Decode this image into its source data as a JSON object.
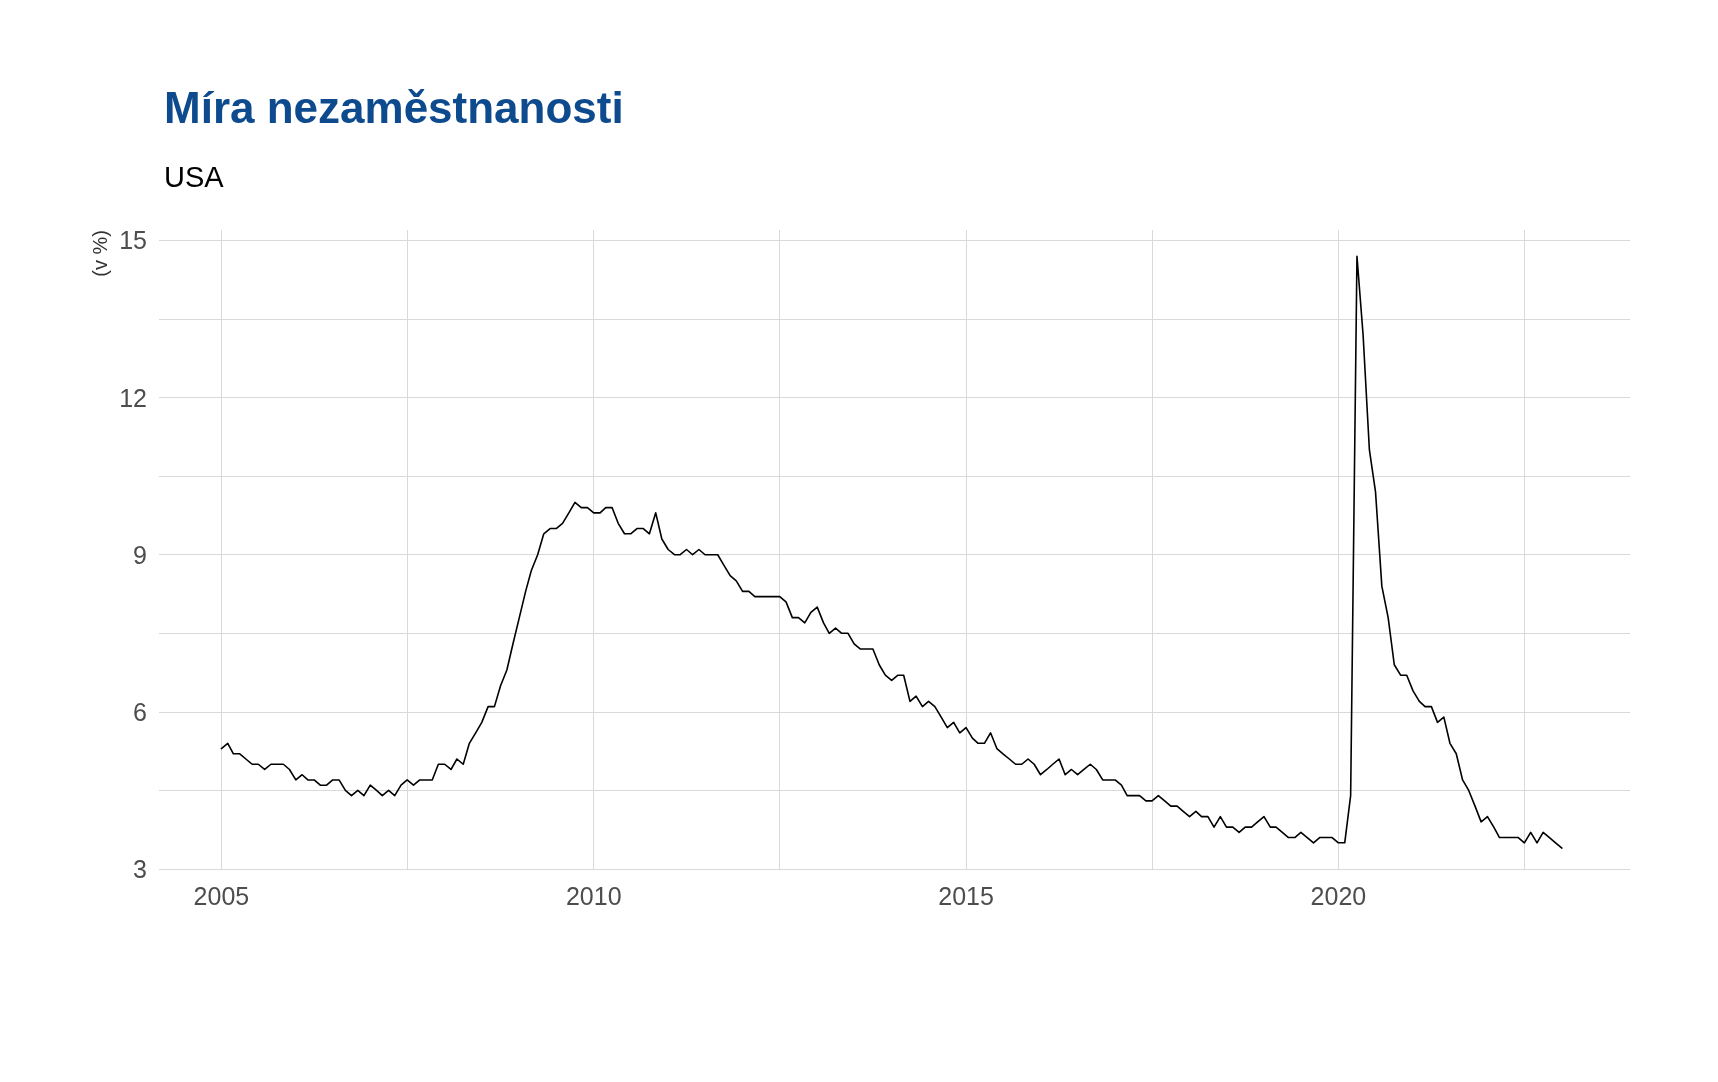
{
  "chart_data": {
    "type": "line",
    "title": "Míra nezaměstnanosti",
    "subtitle": "USA",
    "ylabel": "(v %)",
    "x": [
      "2005-01",
      "2005-02",
      "2005-03",
      "2005-04",
      "2005-05",
      "2005-06",
      "2005-07",
      "2005-08",
      "2005-09",
      "2005-10",
      "2005-11",
      "2005-12",
      "2006-01",
      "2006-02",
      "2006-03",
      "2006-04",
      "2006-05",
      "2006-06",
      "2006-07",
      "2006-08",
      "2006-09",
      "2006-10",
      "2006-11",
      "2006-12",
      "2007-01",
      "2007-02",
      "2007-03",
      "2007-04",
      "2007-05",
      "2007-06",
      "2007-07",
      "2007-08",
      "2007-09",
      "2007-10",
      "2007-11",
      "2007-12",
      "2008-01",
      "2008-02",
      "2008-03",
      "2008-04",
      "2008-05",
      "2008-06",
      "2008-07",
      "2008-08",
      "2008-09",
      "2008-10",
      "2008-11",
      "2008-12",
      "2009-01",
      "2009-02",
      "2009-03",
      "2009-04",
      "2009-05",
      "2009-06",
      "2009-07",
      "2009-08",
      "2009-09",
      "2009-10",
      "2009-11",
      "2009-12",
      "2010-01",
      "2010-02",
      "2010-03",
      "2010-04",
      "2010-05",
      "2010-06",
      "2010-07",
      "2010-08",
      "2010-09",
      "2010-10",
      "2010-11",
      "2010-12",
      "2011-01",
      "2011-02",
      "2011-03",
      "2011-04",
      "2011-05",
      "2011-06",
      "2011-07",
      "2011-08",
      "2011-09",
      "2011-10",
      "2011-11",
      "2011-12",
      "2012-01",
      "2012-02",
      "2012-03",
      "2012-04",
      "2012-05",
      "2012-06",
      "2012-07",
      "2012-08",
      "2012-09",
      "2012-10",
      "2012-11",
      "2012-12",
      "2013-01",
      "2013-02",
      "2013-03",
      "2013-04",
      "2013-05",
      "2013-06",
      "2013-07",
      "2013-08",
      "2013-09",
      "2013-10",
      "2013-11",
      "2013-12",
      "2014-01",
      "2014-02",
      "2014-03",
      "2014-04",
      "2014-05",
      "2014-06",
      "2014-07",
      "2014-08",
      "2014-09",
      "2014-10",
      "2014-11",
      "2014-12",
      "2015-01",
      "2015-02",
      "2015-03",
      "2015-04",
      "2015-05",
      "2015-06",
      "2015-07",
      "2015-08",
      "2015-09",
      "2015-10",
      "2015-11",
      "2015-12",
      "2016-01",
      "2016-02",
      "2016-03",
      "2016-04",
      "2016-05",
      "2016-06",
      "2016-07",
      "2016-08",
      "2016-09",
      "2016-10",
      "2016-11",
      "2016-12",
      "2017-01",
      "2017-02",
      "2017-03",
      "2017-04",
      "2017-05",
      "2017-06",
      "2017-07",
      "2017-08",
      "2017-09",
      "2017-10",
      "2017-11",
      "2017-12",
      "2018-01",
      "2018-02",
      "2018-03",
      "2018-04",
      "2018-05",
      "2018-06",
      "2018-07",
      "2018-08",
      "2018-09",
      "2018-10",
      "2018-11",
      "2018-12",
      "2019-01",
      "2019-02",
      "2019-03",
      "2019-04",
      "2019-05",
      "2019-06",
      "2019-07",
      "2019-08",
      "2019-09",
      "2019-10",
      "2019-11",
      "2019-12",
      "2020-01",
      "2020-02",
      "2020-03",
      "2020-04",
      "2020-05",
      "2020-06",
      "2020-07",
      "2020-08",
      "2020-09",
      "2020-10",
      "2020-11",
      "2020-12",
      "2021-01",
      "2021-02",
      "2021-03",
      "2021-04",
      "2021-05",
      "2021-06",
      "2021-07",
      "2021-08",
      "2021-09",
      "2021-10",
      "2021-11",
      "2021-12",
      "2022-01",
      "2022-02",
      "2022-03",
      "2022-04",
      "2022-05",
      "2022-06",
      "2022-07",
      "2022-08",
      "2022-09",
      "2022-10",
      "2022-11",
      "2022-12",
      "2023-01"
    ],
    "series": [
      {
        "color": "#000000",
        "values": [
          5.3,
          5.4,
          5.2,
          5.2,
          5.1,
          5.0,
          5.0,
          4.9,
          5.0,
          5.0,
          5.0,
          4.9,
          4.7,
          4.8,
          4.7,
          4.7,
          4.6,
          4.6,
          4.7,
          4.7,
          4.5,
          4.4,
          4.5,
          4.4,
          4.6,
          4.5,
          4.4,
          4.5,
          4.4,
          4.6,
          4.7,
          4.6,
          4.7,
          4.7,
          4.7,
          5.0,
          5.0,
          4.9,
          5.1,
          5.0,
          5.4,
          5.6,
          5.8,
          6.1,
          6.1,
          6.5,
          6.8,
          7.3,
          7.8,
          8.3,
          8.7,
          9.0,
          9.4,
          9.5,
          9.5,
          9.6,
          9.8,
          10.0,
          9.9,
          9.9,
          9.8,
          9.8,
          9.9,
          9.9,
          9.6,
          9.4,
          9.4,
          9.5,
          9.5,
          9.4,
          9.8,
          9.3,
          9.1,
          9.0,
          9.0,
          9.1,
          9.0,
          9.1,
          9.0,
          9.0,
          9.0,
          8.8,
          8.6,
          8.5,
          8.3,
          8.3,
          8.2,
          8.2,
          8.2,
          8.2,
          8.2,
          8.1,
          7.8,
          7.8,
          7.7,
          7.9,
          8.0,
          7.7,
          7.5,
          7.6,
          7.5,
          7.5,
          7.3,
          7.2,
          7.2,
          7.2,
          6.9,
          6.7,
          6.6,
          6.7,
          6.7,
          6.2,
          6.3,
          6.1,
          6.2,
          6.1,
          5.9,
          5.7,
          5.8,
          5.6,
          5.7,
          5.5,
          5.4,
          5.4,
          5.6,
          5.3,
          5.2,
          5.1,
          5.0,
          5.0,
          5.1,
          5.0,
          4.8,
          4.9,
          5.0,
          5.1,
          4.8,
          4.9,
          4.8,
          4.9,
          5.0,
          4.9,
          4.7,
          4.7,
          4.7,
          4.6,
          4.4,
          4.4,
          4.4,
          4.3,
          4.3,
          4.4,
          4.3,
          4.2,
          4.2,
          4.1,
          4.0,
          4.1,
          4.0,
          4.0,
          3.8,
          4.0,
          3.8,
          3.8,
          3.7,
          3.8,
          3.8,
          3.9,
          4.0,
          3.8,
          3.8,
          3.7,
          3.6,
          3.6,
          3.7,
          3.6,
          3.5,
          3.6,
          3.6,
          3.6,
          3.5,
          3.5,
          4.4,
          14.7,
          13.2,
          11.0,
          10.2,
          8.4,
          7.8,
          6.9,
          6.7,
          6.7,
          6.4,
          6.2,
          6.1,
          6.1,
          5.8,
          5.9,
          5.4,
          5.2,
          4.7,
          4.5,
          4.2,
          3.9,
          4.0,
          3.8,
          3.6,
          3.6,
          3.6,
          3.6,
          3.5,
          3.7,
          3.5,
          3.7,
          3.6,
          3.5,
          3.4
        ]
      }
    ],
    "xlim": [
      "2004-03",
      "2023-12"
    ],
    "xticks": [
      {
        "value": "2005-01",
        "label": "2005"
      },
      {
        "value": "2007-07",
        "label": null
      },
      {
        "value": "2010-01",
        "label": "2010"
      },
      {
        "value": "2012-07",
        "label": null
      },
      {
        "value": "2015-01",
        "label": "2015"
      },
      {
        "value": "2017-07",
        "label": null
      },
      {
        "value": "2020-01",
        "label": "2020"
      },
      {
        "value": "2022-07",
        "label": null
      }
    ],
    "ylim": [
      3,
      15.2
    ],
    "yticks": [
      3,
      {
        "value": 4.5,
        "label": null
      },
      6,
      {
        "value": 7.5,
        "label": null
      },
      9,
      {
        "value": 10.5,
        "label": null
      },
      12,
      {
        "value": 13.5,
        "label": null
      },
      15
    ],
    "grid": true,
    "marker": "none",
    "line_style": "solid"
  }
}
